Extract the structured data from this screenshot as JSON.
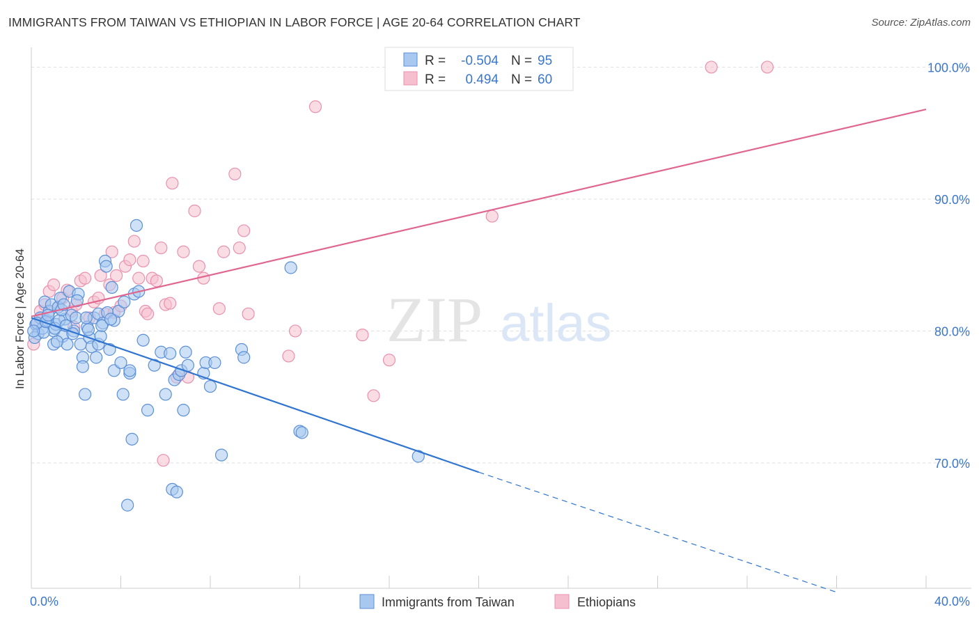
{
  "title": "IMMIGRANTS FROM TAIWAN VS ETHIOPIAN IN LABOR FORCE | AGE 20-64 CORRELATION CHART",
  "source": "Source: ZipAtlas.com",
  "watermark": {
    "zip": "ZIP",
    "atlas": "atlas"
  },
  "colors": {
    "taiwan_fill": "#a8c8f0",
    "taiwan_stroke": "#5b8fd6",
    "taiwan_line": "#2f74d0",
    "ethiopian_fill": "#f6bfd0",
    "ethiopian_stroke": "#e891ad",
    "ethiopian_line": "#e0668f",
    "tick": "#3b76c9",
    "grid": "#dddddd"
  },
  "legend": {
    "rows": [
      {
        "r_label": "R =",
        "r_value": "-0.504",
        "n_label": "N =",
        "n_value": "95"
      },
      {
        "r_label": "R =",
        "r_value": "0.494",
        "n_label": "N =",
        "n_value": "60"
      }
    ]
  },
  "chart_data": {
    "type": "scatter",
    "title": "IMMIGRANTS FROM TAIWAN VS ETHIOPIAN IN LABOR FORCE | AGE 20-64 CORRELATION CHART",
    "xlabel": "",
    "ylabel": "In Labor Force | Age 20-64",
    "xlim": [
      0,
      40
    ],
    "ylim": [
      60.5,
      101.5
    ],
    "x_tick_labels": [
      {
        "value": 0,
        "label": "0.0%"
      },
      {
        "value": 40,
        "label": "40.0%"
      }
    ],
    "y_tick_labels": [
      {
        "value": 70,
        "label": "70.0%"
      },
      {
        "value": 80,
        "label": "80.0%"
      },
      {
        "value": 90,
        "label": "90.0%"
      },
      {
        "value": 100,
        "label": "100.0%"
      }
    ],
    "grid": true,
    "legend_position": "top-center",
    "series": [
      {
        "name": "Immigrants from Taiwan",
        "color": "#a8c8f0",
        "R": -0.504,
        "N": 95,
        "trend": {
          "x0": 0,
          "y0": 81.0,
          "x1": 20,
          "y1": 69.3,
          "dash_to_x": 36,
          "dash_to_y": 60.2
        },
        "points": [
          [
            0.2,
            80.5
          ],
          [
            0.3,
            79.8
          ],
          [
            0.4,
            81.0
          ],
          [
            0.5,
            80.2
          ],
          [
            0.6,
            82.2
          ],
          [
            0.7,
            80.8
          ],
          [
            0.8,
            81.5
          ],
          [
            0.9,
            82.0
          ],
          [
            1.0,
            80.0
          ],
          [
            1.0,
            79.0
          ],
          [
            1.1,
            80.5
          ],
          [
            1.2,
            81.8
          ],
          [
            1.3,
            82.5
          ],
          [
            1.4,
            79.6
          ],
          [
            1.5,
            80.9
          ],
          [
            1.6,
            79.0
          ],
          [
            1.7,
            83.0
          ],
          [
            1.8,
            81.2
          ],
          [
            1.9,
            80.0
          ],
          [
            2.0,
            81.0
          ],
          [
            2.1,
            82.8
          ],
          [
            2.2,
            79.0
          ],
          [
            2.3,
            78.0
          ],
          [
            2.3,
            77.3
          ],
          [
            2.4,
            75.2
          ],
          [
            2.5,
            80.3
          ],
          [
            2.6,
            79.5
          ],
          [
            2.7,
            78.8
          ],
          [
            2.8,
            81.0
          ],
          [
            2.9,
            78.0
          ],
          [
            3.0,
            79.0
          ],
          [
            3.0,
            81.3
          ],
          [
            3.1,
            79.6
          ],
          [
            3.2,
            80.6
          ],
          [
            3.3,
            85.3
          ],
          [
            3.4,
            81.4
          ],
          [
            3.5,
            78.6
          ],
          [
            3.6,
            83.3
          ],
          [
            3.7,
            80.8
          ],
          [
            3.7,
            77.0
          ],
          [
            3.9,
            81.5
          ],
          [
            4.0,
            77.6
          ],
          [
            4.1,
            75.2
          ],
          [
            4.3,
            66.8
          ],
          [
            4.4,
            76.8
          ],
          [
            4.4,
            77.0
          ],
          [
            4.5,
            71.8
          ],
          [
            4.6,
            82.8
          ],
          [
            4.7,
            88.0
          ],
          [
            4.8,
            83.0
          ],
          [
            5.0,
            79.3
          ],
          [
            5.2,
            74.0
          ],
          [
            5.5,
            77.4
          ],
          [
            5.8,
            78.4
          ],
          [
            6.0,
            75.2
          ],
          [
            6.2,
            78.3
          ],
          [
            6.3,
            68.0
          ],
          [
            6.4,
            76.3
          ],
          [
            6.5,
            67.8
          ],
          [
            6.6,
            76.7
          ],
          [
            6.7,
            77.0
          ],
          [
            6.8,
            74.0
          ],
          [
            6.9,
            78.4
          ],
          [
            7.0,
            77.4
          ],
          [
            7.7,
            76.8
          ],
          [
            7.8,
            77.6
          ],
          [
            8.0,
            75.8
          ],
          [
            8.2,
            77.6
          ],
          [
            8.5,
            70.6
          ],
          [
            9.4,
            78.6
          ],
          [
            9.5,
            78.0
          ],
          [
            11.6,
            84.8
          ],
          [
            12.0,
            72.4
          ],
          [
            12.1,
            72.3
          ],
          [
            17.3,
            70.5
          ],
          [
            0.15,
            79.5
          ],
          [
            0.25,
            80.6
          ],
          [
            0.55,
            79.9
          ],
          [
            0.65,
            80.7
          ],
          [
            0.75,
            81.2
          ],
          [
            1.05,
            80.2
          ],
          [
            1.15,
            79.2
          ],
          [
            1.25,
            80.8
          ],
          [
            1.35,
            81.6
          ],
          [
            1.45,
            82.0
          ],
          [
            1.55,
            80.4
          ],
          [
            1.85,
            79.8
          ],
          [
            2.05,
            82.3
          ],
          [
            2.45,
            81.0
          ],
          [
            2.55,
            80.1
          ],
          [
            3.15,
            80.4
          ],
          [
            3.35,
            84.9
          ],
          [
            3.55,
            80.9
          ],
          [
            4.15,
            82.2
          ],
          [
            0.1,
            80.0
          ]
        ]
      },
      {
        "name": "Ethiopians",
        "color": "#f6bfd0",
        "R": 0.494,
        "N": 60,
        "trend": {
          "x0": 0,
          "y0": 81.1,
          "x1": 40,
          "y1": 96.8
        },
        "points": [
          [
            0.1,
            79.0
          ],
          [
            0.2,
            80.5
          ],
          [
            0.4,
            81.5
          ],
          [
            0.6,
            82.0
          ],
          [
            0.8,
            83.0
          ],
          [
            1.0,
            83.5
          ],
          [
            1.2,
            81.8
          ],
          [
            1.4,
            82.5
          ],
          [
            1.6,
            83.1
          ],
          [
            1.8,
            81.5
          ],
          [
            2.0,
            82.0
          ],
          [
            2.2,
            83.8
          ],
          [
            2.4,
            84.0
          ],
          [
            2.6,
            81.0
          ],
          [
            2.8,
            82.2
          ],
          [
            3.0,
            82.5
          ],
          [
            3.1,
            84.2
          ],
          [
            3.3,
            81.3
          ],
          [
            3.5,
            83.5
          ],
          [
            3.6,
            86.0
          ],
          [
            3.7,
            81.4
          ],
          [
            3.8,
            84.2
          ],
          [
            4.0,
            81.9
          ],
          [
            4.2,
            84.9
          ],
          [
            4.4,
            85.4
          ],
          [
            4.6,
            86.8
          ],
          [
            4.8,
            84.0
          ],
          [
            5.0,
            85.3
          ],
          [
            5.1,
            81.5
          ],
          [
            5.2,
            81.3
          ],
          [
            5.4,
            84.0
          ],
          [
            5.6,
            83.8
          ],
          [
            5.8,
            86.3
          ],
          [
            6.0,
            82.0
          ],
          [
            6.2,
            82.1
          ],
          [
            6.3,
            91.2
          ],
          [
            6.5,
            76.5
          ],
          [
            6.8,
            86.0
          ],
          [
            7.0,
            76.5
          ],
          [
            7.3,
            89.1
          ],
          [
            7.5,
            84.9
          ],
          [
            7.7,
            84.0
          ],
          [
            8.4,
            81.7
          ],
          [
            8.6,
            86.0
          ],
          [
            9.1,
            91.9
          ],
          [
            9.3,
            86.3
          ],
          [
            9.5,
            87.6
          ],
          [
            9.7,
            81.3
          ],
          [
            11.5,
            78.1
          ],
          [
            11.8,
            80.0
          ],
          [
            12.7,
            97.0
          ],
          [
            14.8,
            79.7
          ],
          [
            15.3,
            75.1
          ],
          [
            16.0,
            77.8
          ],
          [
            20.6,
            88.7
          ],
          [
            30.4,
            100.0
          ],
          [
            32.9,
            100.0
          ],
          [
            5.9,
            70.2
          ],
          [
            0.5,
            81.0
          ],
          [
            1.9,
            80.3
          ]
        ]
      }
    ]
  },
  "bottom_legend": [
    {
      "label": "Immigrants from Taiwan"
    },
    {
      "label": "Ethiopians"
    }
  ]
}
